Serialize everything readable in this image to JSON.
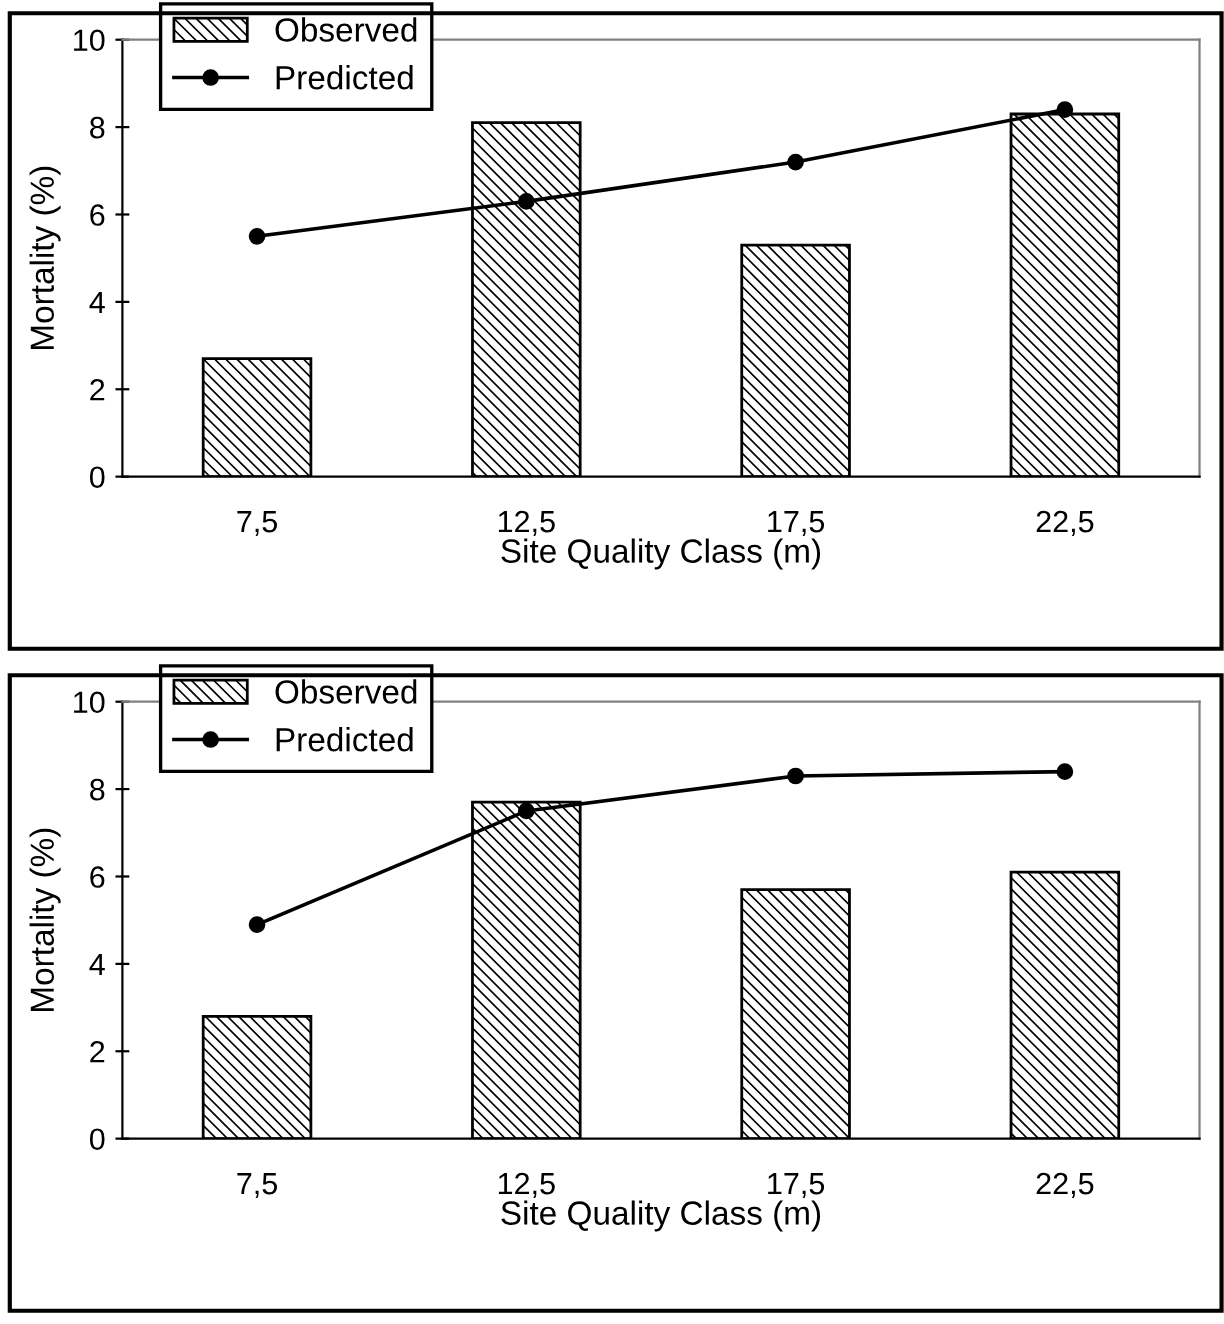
{
  "chart_data": [
    {
      "type": "line",
      "categories": [
        "7,5",
        "12,5",
        "17,5",
        "22,5"
      ],
      "xlabel": "Site Quality Class (m)",
      "ylabel": "Mortality (%)",
      "ylim": [
        0,
        10
      ],
      "yticks": [
        0,
        2,
        4,
        6,
        8,
        10
      ],
      "grid": false,
      "legend": "top left",
      "marker": "circle",
      "line_style": "solid",
      "series": [
        {
          "name": "Observed",
          "type": "bar",
          "color": "#000000",
          "values": [
            2.7,
            8.1,
            5.3,
            8.3
          ]
        },
        {
          "name": "Predicted",
          "color": "#000000",
          "values": [
            5.5,
            6.3,
            7.2,
            8.4
          ]
        }
      ]
    },
    {
      "type": "line",
      "categories": [
        "7,5",
        "12,5",
        "17,5",
        "22,5"
      ],
      "xlabel": "Site Quality Class (m)",
      "ylabel": "Mortality (%)",
      "ylim": [
        0,
        10
      ],
      "yticks": [
        0,
        2,
        4,
        6,
        8,
        10
      ],
      "grid": false,
      "legend": "top left",
      "marker": "circle",
      "line_style": "solid",
      "series": [
        {
          "name": "Observed",
          "type": "bar",
          "color": "#000000",
          "values": [
            2.8,
            7.7,
            5.7,
            6.1
          ]
        },
        {
          "name": "Predicted",
          "color": "#000000",
          "values": [
            4.9,
            7.5,
            8.3,
            8.4
          ]
        }
      ]
    }
  ]
}
